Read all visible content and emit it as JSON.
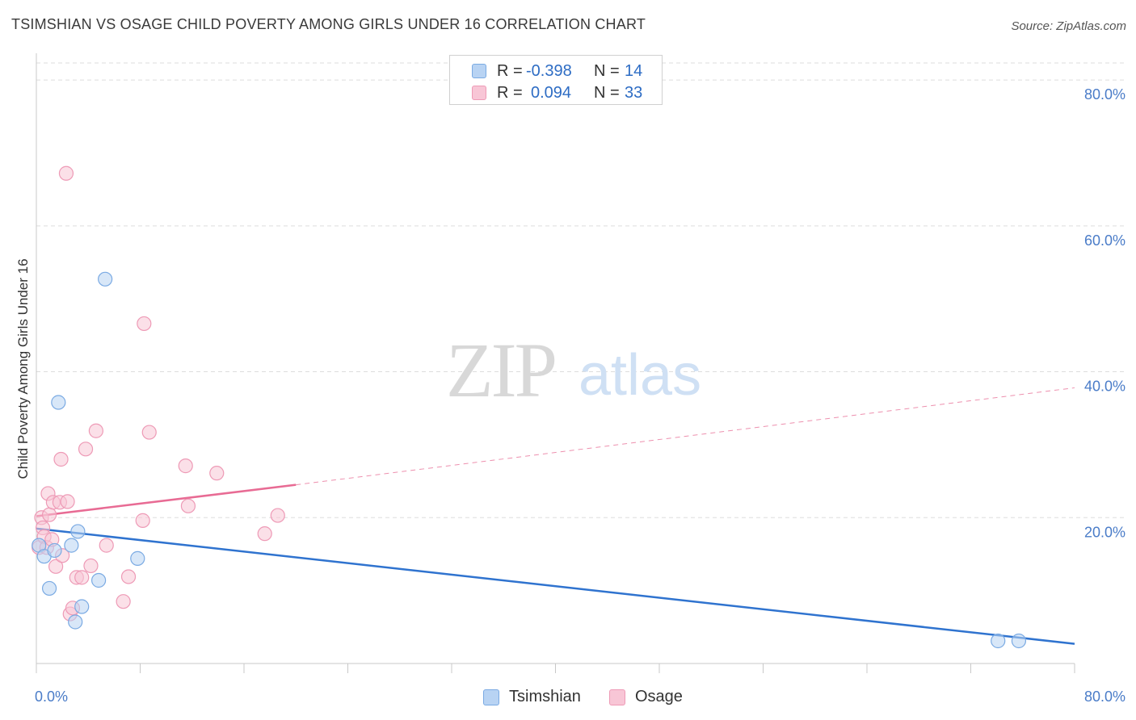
{
  "title": "TSIMSHIAN VS OSAGE CHILD POVERTY AMONG GIRLS UNDER 16 CORRELATION CHART",
  "source": "Source: ZipAtlas.com",
  "watermark": {
    "zip": "ZIP",
    "atlas": "atlas"
  },
  "legend_top": {
    "rows": [
      {
        "r_label": "R =",
        "r_value": "-0.398",
        "n_label": "N =",
        "n_value": "14"
      },
      {
        "r_label": "R =",
        "r_value": "0.094",
        "n_label": "N =",
        "n_value": "33"
      }
    ]
  },
  "legend_bottom": {
    "tsimshian": "Tsimshian",
    "osage": "Osage"
  },
  "colors": {
    "tsimshian_fill": "#b8d3f3",
    "tsimshian_stroke": "#7aaae3",
    "tsimshian_line": "#2f73cf",
    "osage_fill": "#f8c6d6",
    "osage_stroke": "#ee9ab6",
    "osage_line": "#e86b94",
    "tick_label": "#4a7cc8",
    "grid": "#dddddd"
  },
  "chart_data": {
    "type": "scatter",
    "title": "TSIMSHIAN VS OSAGE CHILD POVERTY AMONG GIRLS UNDER 16 CORRELATION CHART",
    "xlabel": "",
    "ylabel": "Child Poverty Among Girls Under 16",
    "xlim": [
      0,
      80
    ],
    "ylim": [
      0,
      83
    ],
    "x_tick_labels": [
      "0.0%",
      "80.0%"
    ],
    "y_ticks": [
      20,
      40,
      60,
      80
    ],
    "y_tick_labels": [
      "20.0%",
      "40.0%",
      "60.0%",
      "80.0%"
    ],
    "grid": true,
    "legend_position": "top-center",
    "series": [
      {
        "name": "Tsimshian",
        "points": [
          [
            0.2,
            16.2
          ],
          [
            0.6,
            14.7
          ],
          [
            1.0,
            10.3
          ],
          [
            1.4,
            15.5
          ],
          [
            1.7,
            35.8
          ],
          [
            2.7,
            16.2
          ],
          [
            3.2,
            18.1
          ],
          [
            3.5,
            7.8
          ],
          [
            3.0,
            5.7
          ],
          [
            4.8,
            11.4
          ],
          [
            5.3,
            52.7
          ],
          [
            7.8,
            14.4
          ],
          [
            74.1,
            3.1
          ],
          [
            75.7,
            3.1
          ]
        ],
        "trend": {
          "x": [
            0,
            80
          ],
          "y": [
            18.5,
            2.7
          ],
          "style": "solid"
        }
      },
      {
        "name": "Osage",
        "points": [
          [
            0.2,
            15.9
          ],
          [
            0.4,
            20.0
          ],
          [
            0.5,
            18.6
          ],
          [
            0.6,
            17.4
          ],
          [
            0.8,
            15.9
          ],
          [
            0.9,
            23.3
          ],
          [
            1.0,
            20.4
          ],
          [
            1.2,
            17.0
          ],
          [
            1.3,
            22.1
          ],
          [
            1.5,
            13.3
          ],
          [
            1.8,
            22.1
          ],
          [
            1.9,
            28.0
          ],
          [
            2.0,
            14.8
          ],
          [
            2.3,
            67.2
          ],
          [
            2.4,
            22.2
          ],
          [
            2.6,
            6.8
          ],
          [
            2.8,
            7.6
          ],
          [
            3.1,
            11.8
          ],
          [
            3.5,
            11.8
          ],
          [
            3.8,
            29.4
          ],
          [
            4.2,
            13.4
          ],
          [
            4.6,
            31.9
          ],
          [
            5.4,
            16.2
          ],
          [
            6.7,
            8.5
          ],
          [
            7.1,
            11.9
          ],
          [
            8.2,
            19.6
          ],
          [
            8.3,
            46.6
          ],
          [
            8.7,
            31.7
          ],
          [
            11.5,
            27.1
          ],
          [
            11.7,
            21.6
          ],
          [
            13.9,
            26.1
          ],
          [
            17.6,
            17.8
          ],
          [
            18.6,
            20.3
          ]
        ],
        "trend": {
          "x": [
            0,
            20,
            80
          ],
          "y": [
            20.2,
            24.5,
            37.8
          ],
          "style": "solid-then-dashed"
        }
      }
    ]
  }
}
